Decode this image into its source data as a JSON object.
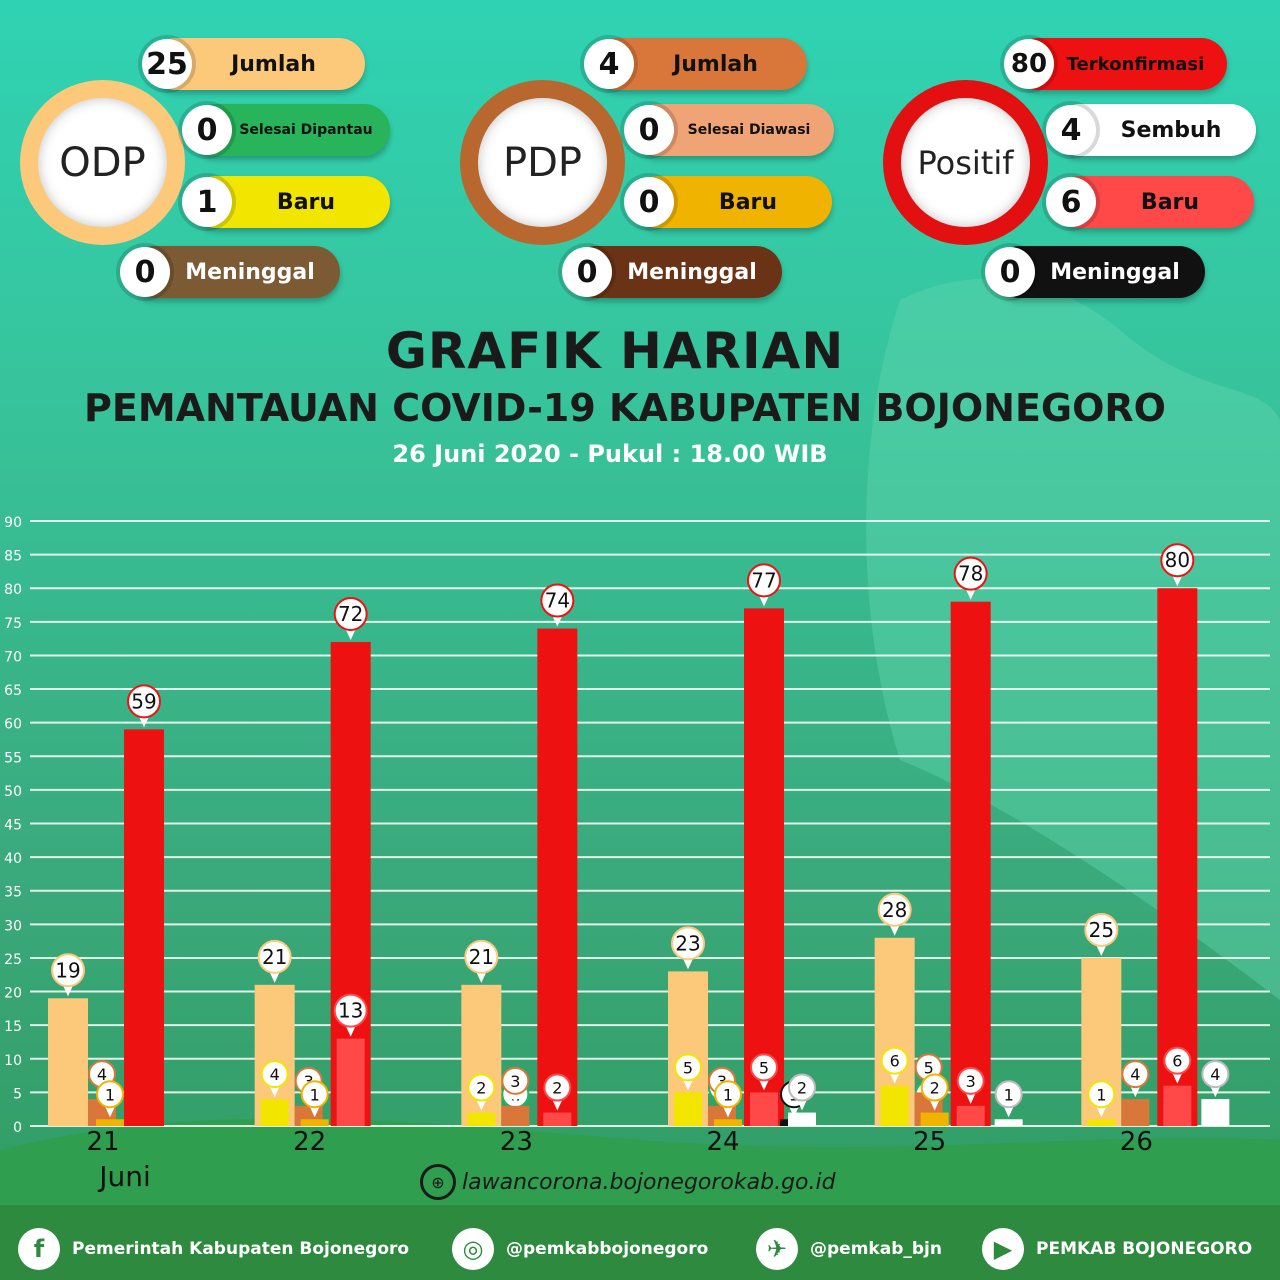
{
  "odp": {
    "label": "ODP",
    "jumlah": {
      "value": "25",
      "label": "Jumlah"
    },
    "selesai": {
      "value": "0",
      "label": "Selesai Dipantau"
    },
    "baru": {
      "value": "1",
      "label": "Baru"
    },
    "meninggal": {
      "value": "0",
      "label": "Meninggal"
    }
  },
  "pdp": {
    "label": "PDP",
    "jumlah": {
      "value": "4",
      "label": "Jumlah"
    },
    "selesai": {
      "value": "0",
      "label": "Selesai Diawasi"
    },
    "baru": {
      "value": "0",
      "label": "Baru"
    },
    "meninggal": {
      "value": "0",
      "label": "Meninggal"
    }
  },
  "positif": {
    "label": "Positif",
    "terkonfirmasi": {
      "value": "80",
      "label": "Terkonfirmasi"
    },
    "sembuh": {
      "value": "4",
      "label": "Sembuh"
    },
    "baru": {
      "value": "6",
      "label": "Baru"
    },
    "meninggal": {
      "value": "0",
      "label": "Meninggal"
    }
  },
  "header": {
    "title": "GRAFIK HARIAN",
    "subtitle": "PEMANTAUAN COVID-19 KABUPATEN BOJONEGORO",
    "date": "26 Juni 2020 - Pukul : 18.00 WIB"
  },
  "colors": {
    "odp": "#fcc97a",
    "selesai": "#27b45a",
    "odp_baru": "#f2e600",
    "pdp": "#d9773b",
    "pdp_baru": "#f0b400",
    "positif": "#ee1111",
    "positif_baru": "#ff4848",
    "meninggal": "#111111",
    "sembuh": "#ffffff"
  },
  "chart_data": {
    "type": "bar",
    "categories": [
      "21",
      "22",
      "23",
      "24",
      "25",
      "26"
    ],
    "month_label": "Juni",
    "yticks": [
      0,
      5,
      10,
      15,
      20,
      25,
      30,
      35,
      40,
      45,
      50,
      55,
      60,
      65,
      70,
      75,
      80,
      85,
      90
    ],
    "ylim": [
      0,
      90
    ],
    "groups": [
      {
        "cat": "21",
        "bars": [
          {
            "key": "odp",
            "value": 19
          },
          {
            "key": "pdp",
            "value": 4
          },
          {
            "key": "pdp_baru",
            "value": 1
          },
          {
            "key": "positif",
            "value": 59
          }
        ]
      },
      {
        "cat": "22",
        "bars": [
          {
            "key": "odp",
            "value": 21
          },
          {
            "key": "odp_baru",
            "value": 4
          },
          {
            "key": "pdp",
            "value": 3
          },
          {
            "key": "pdp_baru",
            "value": 1
          },
          {
            "key": "positif",
            "value": 72
          },
          {
            "key": "positif_baru",
            "value": 13
          }
        ]
      },
      {
        "cat": "23",
        "bars": [
          {
            "key": "odp",
            "value": 21
          },
          {
            "key": "odp_baru",
            "value": 2
          },
          {
            "key": "selesai",
            "value": 1
          },
          {
            "key": "pdp",
            "value": 3
          },
          {
            "key": "positif",
            "value": 74
          },
          {
            "key": "positif_baru",
            "value": 2
          }
        ]
      },
      {
        "cat": "24",
        "bars": [
          {
            "key": "odp",
            "value": 23
          },
          {
            "key": "odp_baru",
            "value": 5
          },
          {
            "key": "selesai",
            "value": 2
          },
          {
            "key": "pdp",
            "value": 3
          },
          {
            "key": "pdp_baru",
            "value": 1
          },
          {
            "key": "positif",
            "value": 77
          },
          {
            "key": "positif_baru",
            "value": 5
          },
          {
            "key": "meninggal",
            "value": 1
          },
          {
            "key": "sembuh",
            "value": 2
          }
        ]
      },
      {
        "cat": "25",
        "bars": [
          {
            "key": "odp",
            "value": 28
          },
          {
            "key": "odp_baru",
            "value": 6
          },
          {
            "key": "selesai",
            "value": 1
          },
          {
            "key": "pdp",
            "value": 5
          },
          {
            "key": "pdp_baru",
            "value": 2
          },
          {
            "key": "positif",
            "value": 78
          },
          {
            "key": "positif_baru",
            "value": 3
          },
          {
            "key": "sembuh",
            "value": 1
          }
        ]
      },
      {
        "cat": "26",
        "bars": [
          {
            "key": "odp",
            "value": 25
          },
          {
            "key": "odp_baru",
            "value": 1
          },
          {
            "key": "pdp",
            "value": 4
          },
          {
            "key": "positif",
            "value": 80
          },
          {
            "key": "positif_baru",
            "value": 6
          },
          {
            "key": "sembuh",
            "value": 4
          }
        ]
      }
    ]
  },
  "website": "lawancorona.bojonegorokab.go.id",
  "social": {
    "facebook": "Pemerintah Kabupaten Bojonegoro",
    "instagram": "@pemkabbojonegoro",
    "twitter": "@pemkab_bjn",
    "youtube": "PEMKAB BOJONEGORO"
  }
}
